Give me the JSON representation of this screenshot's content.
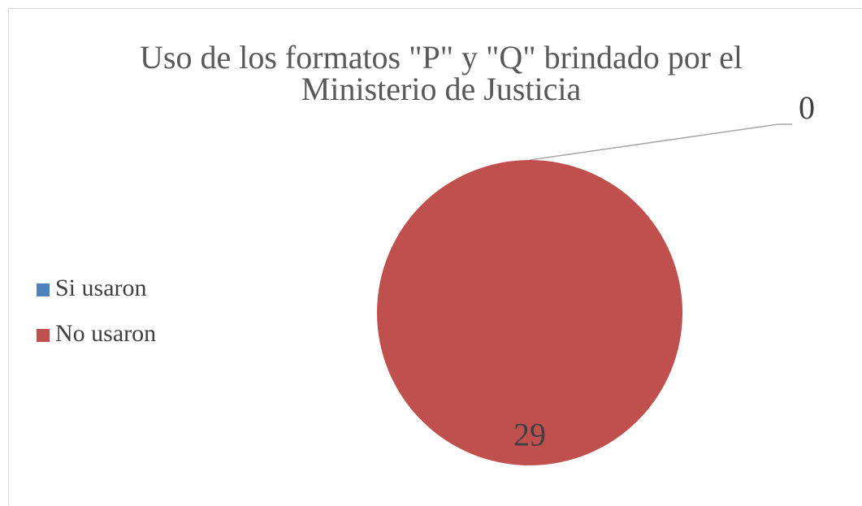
{
  "chart_data": {
    "type": "pie",
    "title": [
      "Uso de los formatos \"P\" y \"Q\" brindado por el",
      "Ministerio de Justicia"
    ],
    "categories": [
      "Si usaron",
      "No usaron"
    ],
    "values": [
      0,
      29
    ],
    "colors": [
      "#4f81bd",
      "#c0504d"
    ],
    "legend": "left"
  }
}
